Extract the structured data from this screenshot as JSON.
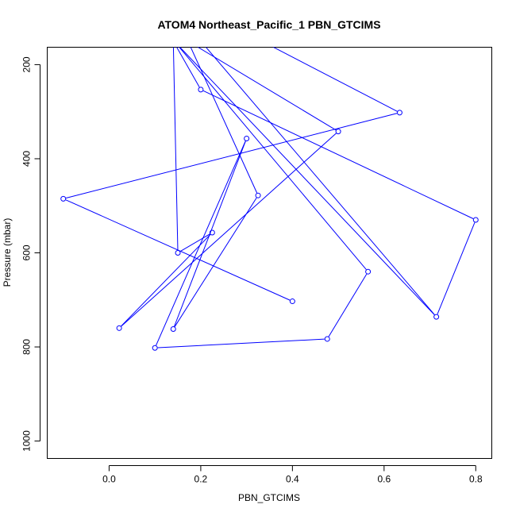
{
  "chart_data": {
    "type": "line",
    "title": "ATOM4 Northeast_Pacific_1 PBN_GTCIMS",
    "xlabel": "PBN_GTCIMS",
    "ylabel": "Pressure (mbar)",
    "xlim": [
      -0.135,
      0.835
    ],
    "ylim": [
      1037,
      163
    ],
    "y_reversed": true,
    "xticks": [
      0.0,
      0.2,
      0.4,
      0.6,
      0.8
    ],
    "xtick_labels": [
      "0.0",
      "0.2",
      "0.4",
      "0.6",
      "0.8"
    ],
    "yticks": [
      200,
      400,
      600,
      800,
      1000
    ],
    "ytick_labels": [
      "200",
      "400",
      "600",
      "800",
      "1000"
    ],
    "grid": false,
    "color": "#0000ff",
    "series": [
      {
        "points": [
          {
            "x": 0.4,
            "y": 703
          },
          {
            "x": -0.1,
            "y": 485
          },
          {
            "x": 0.634,
            "y": 302
          },
          {
            "x": 0.333,
            "y": 150
          },
          {
            "x": 0.2,
            "y": 150
          },
          {
            "x": 0.714,
            "y": 736
          },
          {
            "x": 0.142,
            "y": 150
          },
          {
            "x": 0.565,
            "y": 640
          },
          {
            "x": 0.476,
            "y": 783
          },
          {
            "x": 0.1,
            "y": 802
          },
          {
            "x": 0.3,
            "y": 357
          },
          {
            "x": 0.14,
            "y": 762
          },
          {
            "x": 0.325,
            "y": 478
          },
          {
            "x": 0.172,
            "y": 150
          },
          {
            "x": 0.5,
            "y": 342
          },
          {
            "x": 0.022,
            "y": 760
          },
          {
            "x": 0.225,
            "y": 557
          },
          {
            "x": 0.15,
            "y": 600
          },
          {
            "x": 0.14,
            "y": 150
          },
          {
            "x": 0.2,
            "y": 253
          },
          {
            "x": 0.8,
            "y": 530
          },
          {
            "x": 0.714,
            "y": 736
          }
        ],
        "markers": [
          {
            "x": 0.4,
            "y": 703
          },
          {
            "x": -0.1,
            "y": 485
          },
          {
            "x": 0.634,
            "y": 302
          },
          {
            "x": 0.714,
            "y": 736
          },
          {
            "x": 0.565,
            "y": 640
          },
          {
            "x": 0.476,
            "y": 783
          },
          {
            "x": 0.1,
            "y": 802
          },
          {
            "x": 0.3,
            "y": 357
          },
          {
            "x": 0.14,
            "y": 762
          },
          {
            "x": 0.325,
            "y": 478
          },
          {
            "x": 0.5,
            "y": 342
          },
          {
            "x": 0.022,
            "y": 760
          },
          {
            "x": 0.225,
            "y": 557
          },
          {
            "x": 0.15,
            "y": 600
          },
          {
            "x": 0.2,
            "y": 253
          },
          {
            "x": 0.8,
            "y": 530
          }
        ]
      }
    ]
  }
}
